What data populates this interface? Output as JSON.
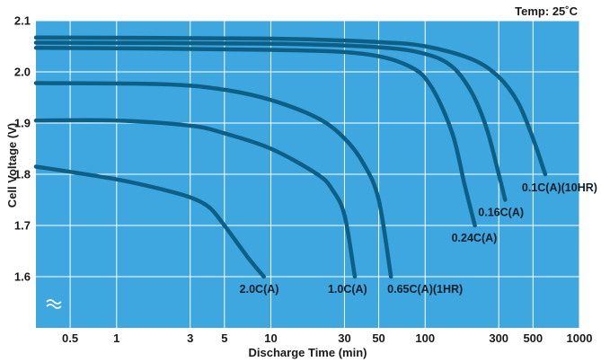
{
  "chart_data": {
    "type": "line",
    "title": "",
    "note": "Temp: 25˚C",
    "xlabel": "Discharge Time (min)",
    "ylabel": "Cell Voltage (V)",
    "xscale": "log",
    "xlim": [
      0.3,
      1000
    ],
    "ylim": [
      1.5,
      2.1
    ],
    "x_ticks": [
      0.5,
      1,
      3,
      5,
      10,
      30,
      50,
      100,
      300,
      500,
      1000
    ],
    "x_tick_labels": [
      "0.5",
      "1",
      "3",
      "5",
      "10",
      "30",
      "50",
      "100",
      "300",
      "500",
      "1000"
    ],
    "y_ticks": [
      1.6,
      1.7,
      1.8,
      1.9,
      2.0,
      2.1
    ],
    "y_tick_labels": [
      "1.6",
      "1.7",
      "1.8",
      "1.9",
      "2.0",
      "2.1"
    ],
    "grid": true,
    "colors": {
      "background": "#3ea7df",
      "curve": "#0d5f86",
      "grid": "#ffffff"
    },
    "series": [
      {
        "name": "0.1C(A)(10HR)",
        "points": [
          [
            0.3,
            2.067
          ],
          [
            10,
            2.065
          ],
          [
            50,
            2.058
          ],
          [
            100,
            2.05
          ],
          [
            200,
            2.025
          ],
          [
            300,
            1.99
          ],
          [
            400,
            1.94
          ],
          [
            500,
            1.87
          ],
          [
            600,
            1.8
          ]
        ]
      },
      {
        "name": "0.16C(A)",
        "points": [
          [
            0.3,
            2.057
          ],
          [
            10,
            2.055
          ],
          [
            50,
            2.048
          ],
          [
            100,
            2.035
          ],
          [
            150,
            2.01
          ],
          [
            200,
            1.96
          ],
          [
            250,
            1.89
          ],
          [
            300,
            1.8
          ],
          [
            330,
            1.75
          ]
        ]
      },
      {
        "name": "0.24C(A)",
        "points": [
          [
            0.3,
            2.047
          ],
          [
            10,
            2.043
          ],
          [
            40,
            2.035
          ],
          [
            80,
            2.01
          ],
          [
            110,
            1.97
          ],
          [
            150,
            1.88
          ],
          [
            180,
            1.78
          ],
          [
            210,
            1.7
          ]
        ]
      },
      {
        "name": "0.65C(A)(1HR)",
        "points": [
          [
            0.3,
            1.978
          ],
          [
            2,
            1.976
          ],
          [
            5,
            1.965
          ],
          [
            10,
            1.945
          ],
          [
            20,
            1.91
          ],
          [
            30,
            1.87
          ],
          [
            40,
            1.82
          ],
          [
            50,
            1.75
          ],
          [
            60,
            1.6
          ]
        ]
      },
      {
        "name": "1.0C(A)",
        "points": [
          [
            0.3,
            1.905
          ],
          [
            1,
            1.905
          ],
          [
            3,
            1.895
          ],
          [
            5,
            1.88
          ],
          [
            10,
            1.85
          ],
          [
            20,
            1.8
          ],
          [
            25,
            1.77
          ],
          [
            30,
            1.72
          ],
          [
            35,
            1.6
          ]
        ]
      },
      {
        "name": "2.0C(A)",
        "points": [
          [
            0.3,
            1.815
          ],
          [
            1,
            1.79
          ],
          [
            2,
            1.77
          ],
          [
            3,
            1.755
          ],
          [
            4,
            1.735
          ],
          [
            5,
            1.7
          ],
          [
            7,
            1.64
          ],
          [
            9,
            1.6
          ]
        ]
      }
    ]
  }
}
